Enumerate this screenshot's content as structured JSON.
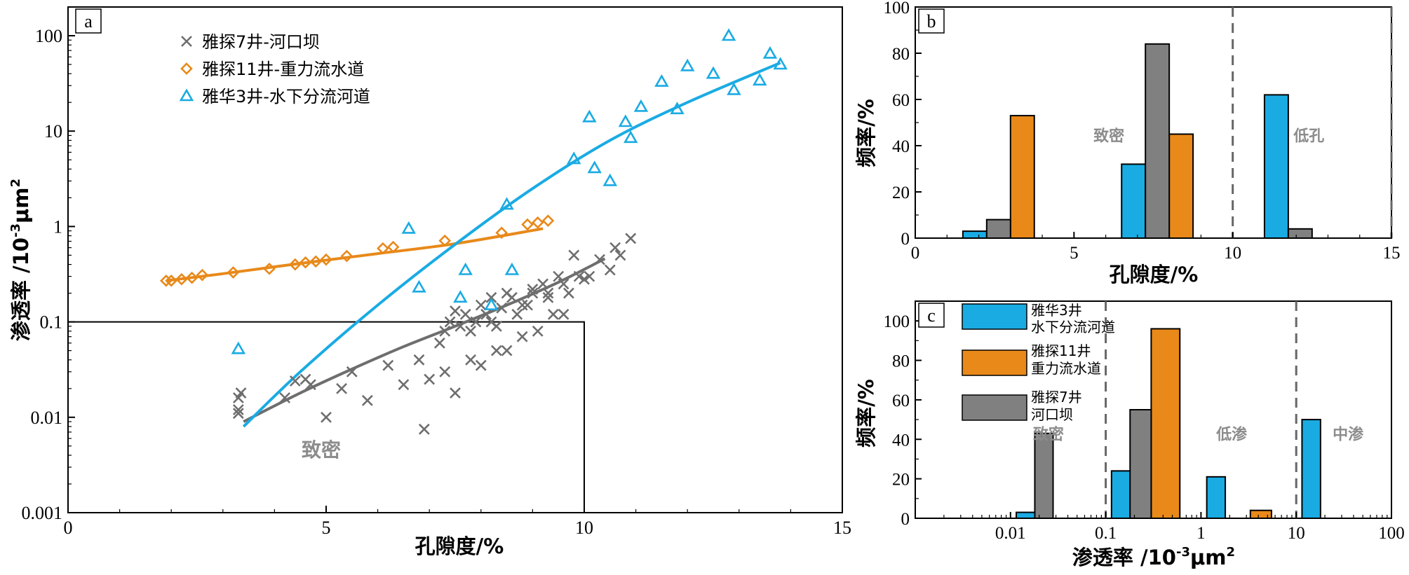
{
  "colors": {
    "blue": "#1AABE3",
    "orange": "#E8891A",
    "gray": "#6E6E6E",
    "gray_bar": "#808080",
    "region_label": "#8C8C8C",
    "dash": "#666666"
  },
  "chart_data": [
    {
      "panel": "a",
      "type": "scatter",
      "xlabel": "孔隙度/%",
      "ylabel": "渗透率 /10",
      "ylabel_exp": "-3",
      "ylabel_unit": "μm",
      "ylabel_unit_exp": "2",
      "xlim": [
        0,
        15
      ],
      "ylim": [
        0.001,
        200
      ],
      "yscale": "log",
      "x_ticks": [
        "0",
        "5",
        "10",
        "15"
      ],
      "y_ticks": [
        "100",
        "10",
        "1",
        "0.1",
        "0.01",
        "0.001"
      ],
      "legend_position": "top-left",
      "region": {
        "label": "致密",
        "x_max": 10,
        "y_max": 0.1
      },
      "series": [
        {
          "name": "雅探7井-河口坝",
          "marker": "x",
          "color": "gray",
          "points": [
            [
              3.3,
              0.016
            ],
            [
              3.3,
              0.012
            ],
            [
              3.3,
              0.011
            ],
            [
              3.35,
              0.018
            ],
            [
              4.2,
              0.016
            ],
            [
              4.4,
              0.024
            ],
            [
              4.6,
              0.025
            ],
            [
              4.7,
              0.022
            ],
            [
              5.0,
              0.01
            ],
            [
              5.3,
              0.02
            ],
            [
              5.5,
              0.03
            ],
            [
              5.8,
              0.015
            ],
            [
              6.2,
              0.035
            ],
            [
              6.5,
              0.022
            ],
            [
              6.8,
              0.04
            ],
            [
              7.0,
              0.025
            ],
            [
              7.3,
              0.03
            ],
            [
              7.5,
              0.018
            ],
            [
              7.8,
              0.04
            ],
            [
              8.0,
              0.035
            ],
            [
              6.9,
              0.0075
            ],
            [
              7.2,
              0.06
            ],
            [
              7.3,
              0.08
            ],
            [
              7.4,
              0.1
            ],
            [
              7.5,
              0.13
            ],
            [
              7.6,
              0.09
            ],
            [
              7.7,
              0.12
            ],
            [
              7.8,
              0.08
            ],
            [
              7.9,
              0.1
            ],
            [
              8.0,
              0.15
            ],
            [
              8.1,
              0.12
            ],
            [
              8.2,
              0.1
            ],
            [
              8.3,
              0.09
            ],
            [
              8.4,
              0.14
            ],
            [
              8.5,
              0.05
            ],
            [
              8.6,
              0.18
            ],
            [
              8.7,
              0.12
            ],
            [
              8.8,
              0.07
            ],
            [
              8.9,
              0.15
            ],
            [
              9.0,
              0.2
            ],
            [
              9.1,
              0.08
            ],
            [
              9.2,
              0.25
            ],
            [
              9.3,
              0.2
            ],
            [
              9.4,
              0.12
            ],
            [
              9.5,
              0.3
            ],
            [
              9.6,
              0.25
            ],
            [
              9.7,
              0.2
            ],
            [
              9.8,
              0.5
            ],
            [
              9.9,
              0.3
            ],
            [
              10.0,
              0.28
            ],
            [
              10.1,
              0.3
            ],
            [
              10.3,
              0.45
            ],
            [
              10.5,
              0.35
            ],
            [
              10.6,
              0.6
            ],
            [
              10.7,
              0.5
            ],
            [
              10.9,
              0.75
            ],
            [
              8.8,
              0.15
            ],
            [
              9.0,
              0.22
            ],
            [
              8.2,
              0.18
            ],
            [
              8.5,
              0.2
            ],
            [
              9.3,
              0.18
            ],
            [
              9.6,
              0.12
            ],
            [
              8.3,
              0.05
            ]
          ],
          "fit": [
            [
              3.4,
              0.009
            ],
            [
              4.5,
              0.018
            ],
            [
              5.5,
              0.032
            ],
            [
              6.5,
              0.055
            ],
            [
              7.5,
              0.09
            ],
            [
              8.5,
              0.15
            ],
            [
              9.5,
              0.26
            ],
            [
              10.4,
              0.46
            ]
          ]
        },
        {
          "name": "雅探11井-重力流水道",
          "marker": "diamond",
          "color": "orange",
          "points": [
            [
              1.9,
              0.27
            ],
            [
              2.0,
              0.27
            ],
            [
              2.2,
              0.28
            ],
            [
              2.4,
              0.29
            ],
            [
              2.6,
              0.31
            ],
            [
              3.2,
              0.33
            ],
            [
              3.9,
              0.36
            ],
            [
              4.4,
              0.4
            ],
            [
              4.6,
              0.42
            ],
            [
              4.8,
              0.43
            ],
            [
              5.0,
              0.45
            ],
            [
              5.4,
              0.49
            ],
            [
              6.1,
              0.59
            ],
            [
              6.3,
              0.61
            ],
            [
              7.3,
              0.71
            ],
            [
              8.4,
              0.86
            ],
            [
              8.9,
              1.05
            ],
            [
              9.1,
              1.1
            ],
            [
              9.3,
              1.15
            ]
          ],
          "fit": [
            [
              1.9,
              0.27
            ],
            [
              3.0,
              0.32
            ],
            [
              4.5,
              0.41
            ],
            [
              6.0,
              0.52
            ],
            [
              7.5,
              0.66
            ],
            [
              9.2,
              0.95
            ]
          ]
        },
        {
          "name": "雅华3井-水下分流河道",
          "marker": "triangle",
          "color": "blue",
          "points": [
            [
              3.3,
              0.052
            ],
            [
              6.6,
              0.95
            ],
            [
              6.8,
              0.23
            ],
            [
              7.6,
              0.18
            ],
            [
              7.7,
              0.35
            ],
            [
              8.2,
              0.15
            ],
            [
              8.5,
              1.7
            ],
            [
              8.6,
              0.35
            ],
            [
              9.8,
              5.1
            ],
            [
              10.1,
              14.0
            ],
            [
              10.2,
              4.1
            ],
            [
              10.5,
              3.0
            ],
            [
              10.8,
              12.5
            ],
            [
              10.9,
              8.5
            ],
            [
              11.1,
              18.0
            ],
            [
              11.5,
              33.0
            ],
            [
              11.8,
              17.0
            ],
            [
              12.0,
              48.0
            ],
            [
              12.5,
              40.0
            ],
            [
              12.8,
              100.0
            ],
            [
              12.9,
              27.0
            ],
            [
              13.4,
              34.0
            ],
            [
              13.6,
              65.0
            ],
            [
              13.8,
              50.0
            ]
          ],
          "fit": [
            [
              3.4,
              0.008
            ],
            [
              4.5,
              0.03
            ],
            [
              6.0,
              0.15
            ],
            [
              7.5,
              0.65
            ],
            [
              9.0,
              2.5
            ],
            [
              10.5,
              8.0
            ],
            [
              12.0,
              20.0
            ],
            [
              13.8,
              52.0
            ]
          ]
        }
      ]
    },
    {
      "panel": "b",
      "type": "bar",
      "xlabel": "孔隙度/%",
      "ylabel": "频率/%",
      "xlim": [
        0,
        15
      ],
      "ylim": [
        0,
        100
      ],
      "x_ticks": [
        "0",
        "5",
        "10",
        "15"
      ],
      "y_ticks": [
        "0",
        "20",
        "40",
        "60",
        "80",
        "100"
      ],
      "dividers": [
        10,
        15
      ],
      "region_labels": [
        {
          "text": "致密",
          "x": 6.1,
          "y": 42
        },
        {
          "text": "低孔",
          "x": 12.4,
          "y": 42
        }
      ],
      "series": [
        {
          "name": "雅华3井 水下分流河道",
          "color": "blue",
          "bars": [
            {
              "x0": 1.5,
              "x1": 2.25,
              "value": 3
            },
            {
              "x0": 6.5,
              "x1": 7.25,
              "value": 32
            },
            {
              "x0": 11.0,
              "x1": 11.75,
              "value": 62
            }
          ]
        },
        {
          "name": "雅探11井 重力流水道",
          "color": "orange",
          "bars": [
            {
              "x0": 3.0,
              "x1": 3.75,
              "value": 53
            },
            {
              "x0": 8.0,
              "x1": 8.75,
              "value": 45
            }
          ]
        },
        {
          "name": "雅探7井 河口坝",
          "color": "gray",
          "bars": [
            {
              "x0": 2.25,
              "x1": 3.0,
              "value": 8
            },
            {
              "x0": 7.25,
              "x1": 8.0,
              "value": 84
            },
            {
              "x0": 11.75,
              "x1": 12.5,
              "value": 4
            }
          ]
        }
      ]
    },
    {
      "panel": "c",
      "type": "bar",
      "xlabel": "渗透率 /10",
      "xlabel_exp": "-3",
      "xlabel_unit": "μm",
      "xlabel_unit_exp": "2",
      "ylabel": "频率/%",
      "xscale": "log",
      "xlim": [
        0.001,
        100
      ],
      "ylim": [
        0,
        110
      ],
      "x_ticks": [
        "0.01",
        "0.1",
        "1",
        "10",
        "100"
      ],
      "y_ticks": [
        "0",
        "20",
        "40",
        "60",
        "80",
        "100"
      ],
      "dividers": [
        0.1,
        10
      ],
      "legend_position": "top-left",
      "legend": [
        {
          "color": "blue",
          "line1": "雅华3井",
          "line2": "水下分流河道"
        },
        {
          "color": "orange",
          "line1": "雅探11井",
          "line2": "重力流水道"
        },
        {
          "color": "gray_bar",
          "line1": "雅探7井",
          "line2": "河口坝"
        }
      ],
      "region_labels": [
        {
          "text": "致密",
          "x": 0.025,
          "y": 40
        },
        {
          "text": "低渗",
          "x": 2.1,
          "y": 40
        },
        {
          "text": "中渗",
          "x": 35,
          "y": 40
        }
      ],
      "series": [
        {
          "name": "雅华3井 水下分流河道",
          "color": "blue",
          "bars": [
            {
              "x0": 0.0115,
              "x1": 0.018,
              "value": 3
            },
            {
              "x0": 0.115,
              "x1": 0.18,
              "value": 24
            },
            {
              "x0": 1.15,
              "x1": 1.8,
              "value": 21
            },
            {
              "x0": 11.5,
              "x1": 18,
              "value": 50
            }
          ]
        },
        {
          "name": "雅探11井 重力流水道",
          "color": "orange",
          "bars": [
            {
              "x0": 0.18,
              "x1": 0.28,
              "value": 55,
              "skip": true
            },
            {
              "x0": 0.3,
              "x1": 0.6,
              "value": 96
            },
            {
              "x0": 3.3,
              "x1": 5.5,
              "value": 4
            }
          ]
        },
        {
          "name": "雅探7井 河口坝",
          "color": "gray",
          "bars": [
            {
              "x0": 0.018,
              "x1": 0.028,
              "value": 43
            },
            {
              "x0": 0.18,
              "x1": 0.3,
              "value": 55
            }
          ]
        }
      ]
    }
  ]
}
